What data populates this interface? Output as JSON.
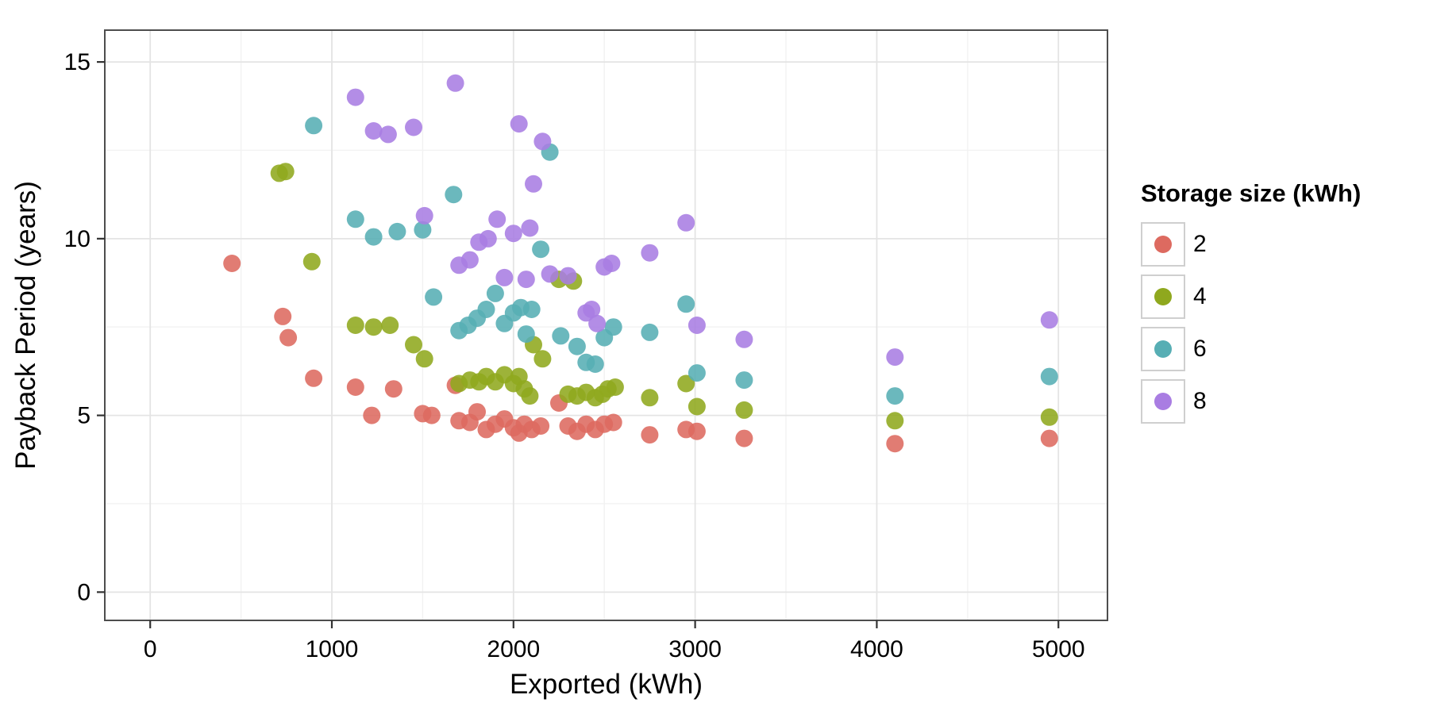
{
  "chart_data": {
    "type": "scatter",
    "title": "",
    "x": {
      "label": "Exported (kWh)",
      "ticks": [
        0,
        1000,
        2000,
        3000,
        4000,
        5000
      ],
      "minor": [
        500,
        1500,
        2500,
        3500,
        4500
      ],
      "range": [
        -250,
        5270
      ]
    },
    "y": {
      "label": "Payback Period (years)",
      "ticks": [
        0,
        5,
        10,
        15
      ],
      "minor": [
        2.5,
        7.5,
        12.5
      ],
      "range": [
        -0.8,
        15.9
      ]
    },
    "legend": {
      "title": "Storage size (kWh)",
      "position": "right"
    },
    "grid": "major+minor",
    "panel_background": "#ffffff",
    "panel_border": "#4d4d4d",
    "series": [
      {
        "name": "2",
        "color": "#dd6a60",
        "points": [
          [
            450,
            9.3
          ],
          [
            730,
            7.8
          ],
          [
            760,
            7.2
          ],
          [
            900,
            6.05
          ],
          [
            1130,
            5.8
          ],
          [
            1220,
            5.0
          ],
          [
            1340,
            5.75
          ],
          [
            1500,
            5.05
          ],
          [
            1550,
            5.0
          ],
          [
            1680,
            5.85
          ],
          [
            1700,
            4.85
          ],
          [
            1760,
            4.8
          ],
          [
            1800,
            5.1
          ],
          [
            1850,
            4.6
          ],
          [
            1900,
            4.75
          ],
          [
            1950,
            4.9
          ],
          [
            2000,
            4.65
          ],
          [
            2030,
            4.5
          ],
          [
            2060,
            4.75
          ],
          [
            2100,
            4.6
          ],
          [
            2150,
            4.7
          ],
          [
            2250,
            5.35
          ],
          [
            2300,
            4.7
          ],
          [
            2350,
            4.55
          ],
          [
            2400,
            4.75
          ],
          [
            2450,
            4.6
          ],
          [
            2500,
            4.75
          ],
          [
            2550,
            4.8
          ],
          [
            2750,
            4.45
          ],
          [
            2950,
            4.6
          ],
          [
            3010,
            4.55
          ],
          [
            3270,
            4.35
          ],
          [
            4100,
            4.2
          ],
          [
            4950,
            4.35
          ]
        ]
      },
      {
        "name": "4",
        "color": "#8fa81e",
        "points": [
          [
            710,
            11.85
          ],
          [
            745,
            11.9
          ],
          [
            890,
            9.35
          ],
          [
            1130,
            7.55
          ],
          [
            1230,
            7.5
          ],
          [
            1320,
            7.55
          ],
          [
            1450,
            7.0
          ],
          [
            1510,
            6.6
          ],
          [
            1700,
            5.9
          ],
          [
            1760,
            6.0
          ],
          [
            1810,
            5.95
          ],
          [
            1850,
            6.1
          ],
          [
            1900,
            5.95
          ],
          [
            1950,
            6.15
          ],
          [
            2000,
            5.9
          ],
          [
            2030,
            6.1
          ],
          [
            2060,
            5.75
          ],
          [
            2090,
            5.55
          ],
          [
            2110,
            7.0
          ],
          [
            2160,
            6.6
          ],
          [
            2250,
            8.85
          ],
          [
            2330,
            8.8
          ],
          [
            2300,
            5.6
          ],
          [
            2350,
            5.55
          ],
          [
            2400,
            5.65
          ],
          [
            2450,
            5.5
          ],
          [
            2490,
            5.6
          ],
          [
            2520,
            5.75
          ],
          [
            2560,
            5.8
          ],
          [
            2750,
            5.5
          ],
          [
            2950,
            5.9
          ],
          [
            3010,
            5.25
          ],
          [
            3270,
            5.15
          ],
          [
            4100,
            4.85
          ],
          [
            4950,
            4.95
          ]
        ]
      },
      {
        "name": "6",
        "color": "#57aeb4",
        "points": [
          [
            900,
            13.2
          ],
          [
            1130,
            10.55
          ],
          [
            1230,
            10.05
          ],
          [
            1360,
            10.2
          ],
          [
            1500,
            10.25
          ],
          [
            1560,
            8.35
          ],
          [
            1670,
            11.25
          ],
          [
            1700,
            7.4
          ],
          [
            1750,
            7.55
          ],
          [
            1800,
            7.75
          ],
          [
            1850,
            8.0
          ],
          [
            1900,
            8.45
          ],
          [
            1950,
            7.6
          ],
          [
            2000,
            7.9
          ],
          [
            2040,
            8.05
          ],
          [
            2070,
            7.3
          ],
          [
            2100,
            8.0
          ],
          [
            2150,
            9.7
          ],
          [
            2200,
            12.45
          ],
          [
            2260,
            7.25
          ],
          [
            2350,
            6.95
          ],
          [
            2400,
            6.5
          ],
          [
            2450,
            6.45
          ],
          [
            2500,
            7.2
          ],
          [
            2550,
            7.5
          ],
          [
            2750,
            7.35
          ],
          [
            2950,
            8.15
          ],
          [
            3010,
            6.2
          ],
          [
            3270,
            6.0
          ],
          [
            4100,
            5.55
          ],
          [
            4950,
            6.1
          ]
        ]
      },
      {
        "name": "8",
        "color": "#a97de2",
        "points": [
          [
            1130,
            14.0
          ],
          [
            1230,
            13.05
          ],
          [
            1310,
            12.95
          ],
          [
            1450,
            13.15
          ],
          [
            1510,
            10.65
          ],
          [
            1680,
            14.4
          ],
          [
            1700,
            9.25
          ],
          [
            1760,
            9.4
          ],
          [
            1810,
            9.9
          ],
          [
            1860,
            10.0
          ],
          [
            1910,
            10.55
          ],
          [
            1950,
            8.9
          ],
          [
            2000,
            10.15
          ],
          [
            2030,
            13.25
          ],
          [
            2070,
            8.85
          ],
          [
            2090,
            10.3
          ],
          [
            2110,
            11.55
          ],
          [
            2160,
            12.75
          ],
          [
            2200,
            9.0
          ],
          [
            2300,
            8.95
          ],
          [
            2400,
            7.9
          ],
          [
            2430,
            8.0
          ],
          [
            2460,
            7.6
          ],
          [
            2500,
            9.2
          ],
          [
            2540,
            9.3
          ],
          [
            2750,
            9.6
          ],
          [
            2950,
            10.45
          ],
          [
            3010,
            7.55
          ],
          [
            3270,
            7.15
          ],
          [
            4100,
            6.65
          ],
          [
            4950,
            7.7
          ]
        ]
      }
    ]
  }
}
